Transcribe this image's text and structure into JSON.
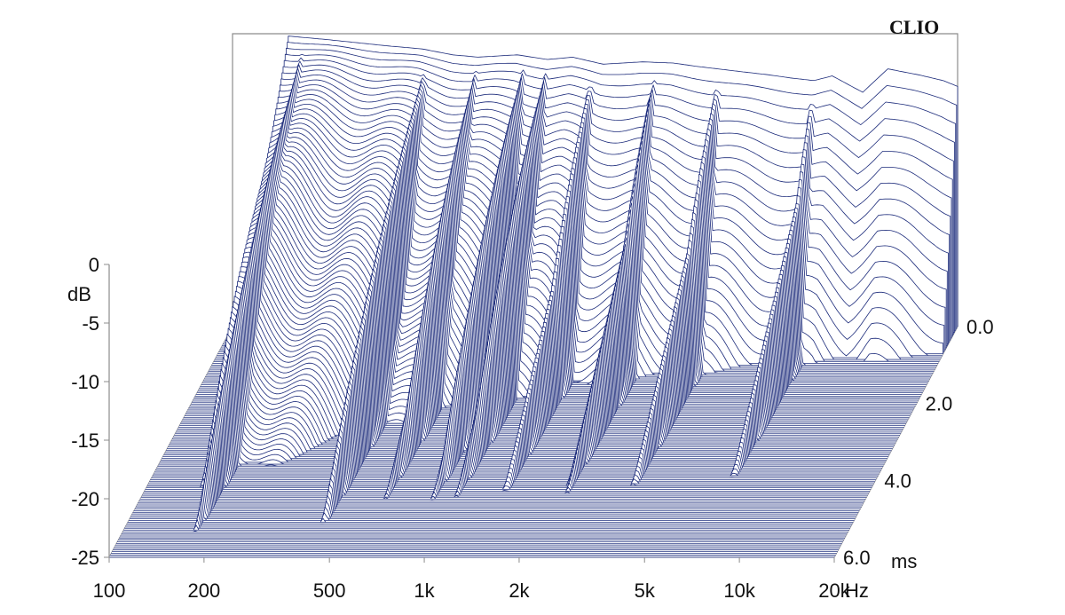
{
  "chart_data": {
    "type": "waterfall",
    "brand": "CLIO",
    "x_axis": {
      "scale": "log",
      "range": [
        100,
        20000
      ],
      "tick_values": [
        100,
        200,
        500,
        1000,
        2000,
        5000,
        10000,
        20000
      ],
      "tick_labels": [
        "100",
        "200",
        "500",
        "1k",
        "2k",
        "5k",
        "10k",
        "20k"
      ],
      "unit": "Hz"
    },
    "y_axis": {
      "range": [
        -25,
        0
      ],
      "tick_values": [
        0,
        -5,
        -10,
        -15,
        -20,
        -25
      ],
      "tick_labels": [
        "0",
        "-5",
        "-10",
        "-15",
        "-20",
        "-25"
      ],
      "unit": "dB"
    },
    "z_axis": {
      "range": [
        0,
        6
      ],
      "tick_values": [
        0,
        2,
        4,
        6
      ],
      "tick_labels": [
        "0.0",
        "2.0",
        "4.0",
        "6.0"
      ],
      "unit": "ms"
    },
    "slice_count": 120,
    "colors": {
      "line": "#1b2a7a",
      "floor": "#5a66a0",
      "frame": "#8c8c8c"
    },
    "initial_response": {
      "freq_hz": [
        150,
        200,
        300,
        400,
        500,
        600,
        800,
        1000,
        1200,
        1500,
        2000,
        2500,
        3000,
        4000,
        5000,
        6000,
        7000,
        8000,
        10000,
        12000,
        15000,
        18000,
        20000
      ],
      "level_db": [
        -0.2,
        -0.5,
        -1.0,
        -1.3,
        -1.8,
        -2.0,
        -1.8,
        -2.2,
        -2.0,
        -2.6,
        -2.4,
        -2.5,
        -2.8,
        -3.2,
        -3.5,
        -3.8,
        -4.0,
        -3.6,
        -5.0,
        -3.0,
        -3.5,
        -4.0,
        -4.5
      ]
    },
    "resonances": [
      {
        "freq_hz": 170,
        "decay_ms": 6.0
      },
      {
        "freq_hz": 420,
        "decay_ms": 6.0
      },
      {
        "freq_hz": 600,
        "decay_ms": 3.5
      },
      {
        "freq_hz": 850,
        "decay_ms": 4.0
      },
      {
        "freq_hz": 1000,
        "decay_ms": 3.5
      },
      {
        "freq_hz": 1400,
        "decay_ms": 2.0
      },
      {
        "freq_hz": 2200,
        "decay_ms": 1.5
      },
      {
        "freq_hz": 3500,
        "decay_ms": 1.5
      },
      {
        "freq_hz": 7000,
        "decay_ms": 0.8
      }
    ]
  }
}
